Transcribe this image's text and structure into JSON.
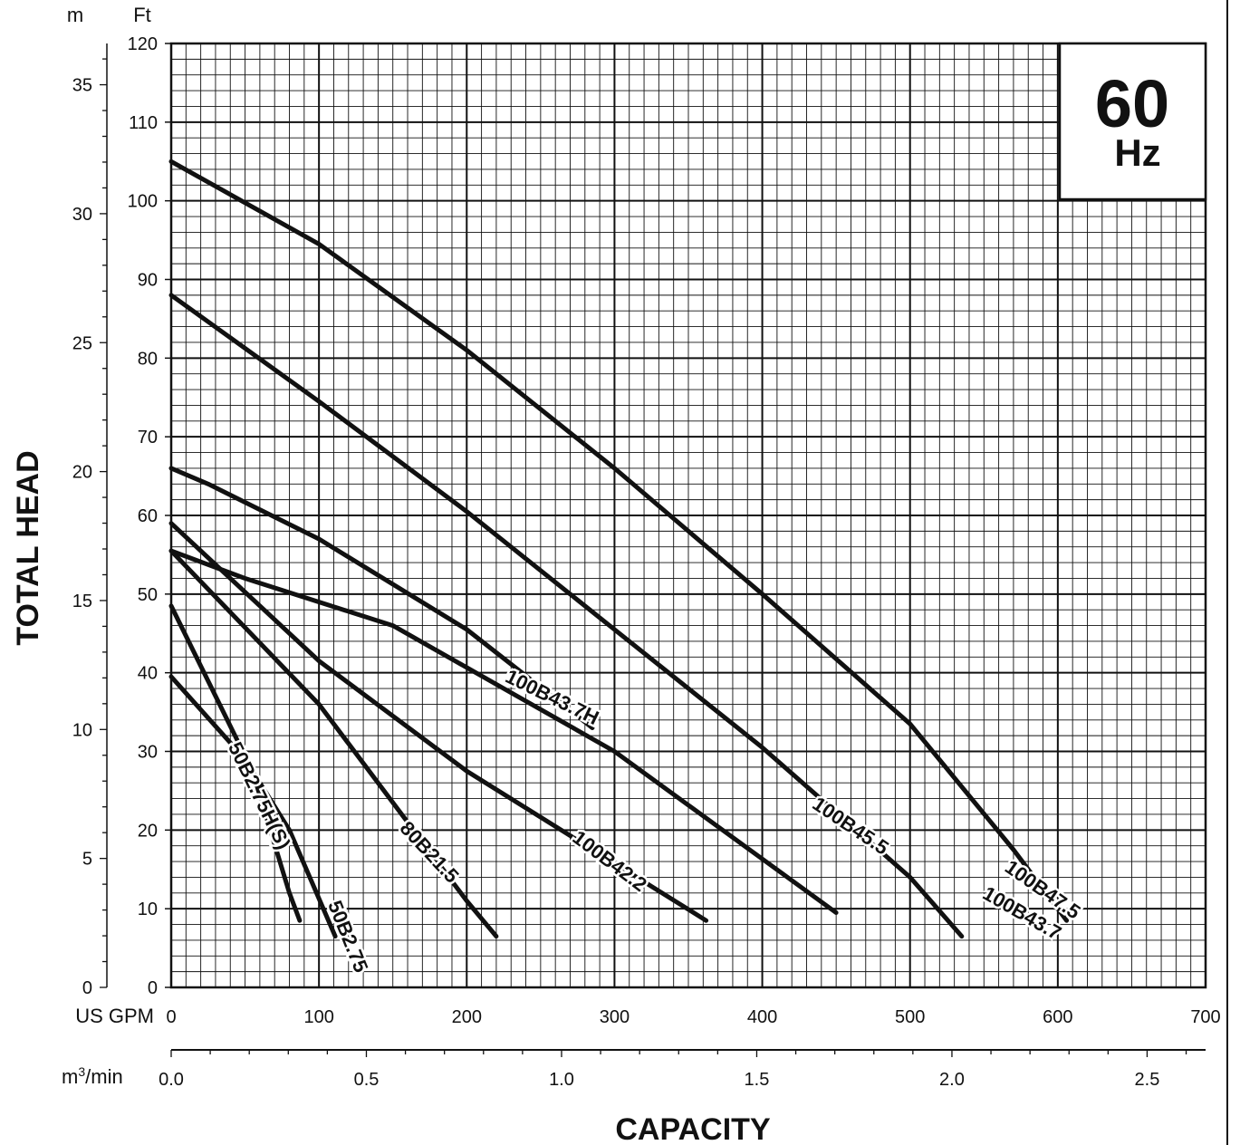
{
  "chart_data": {
    "type": "line",
    "title": "",
    "xlabel": "CAPACITY",
    "ylabel": "TOTAL HEAD",
    "x_unit_primary": "US GPM",
    "x_unit_secondary_base": "m",
    "x_unit_secondary_sup": "3",
    "x_unit_secondary_tail": "/min",
    "y_unit_left": "m",
    "y_unit_right": "Ft",
    "badge": {
      "value": "60",
      "unit": "Hz"
    },
    "xlim": [
      0,
      700
    ],
    "ylim": [
      0,
      120
    ],
    "ylim_m": [
      0,
      36.6
    ],
    "grid": true,
    "x_ticks": [
      "0",
      "100",
      "200",
      "300",
      "400",
      "500",
      "600",
      "700"
    ],
    "x_secondary_ticks": [
      "0.0",
      "0.5",
      "1.0",
      "1.5",
      "2.0",
      "2.5"
    ],
    "y_ticks_ft": [
      "0",
      "10",
      "20",
      "30",
      "40",
      "50",
      "60",
      "70",
      "80",
      "90",
      "100",
      "110",
      "120"
    ],
    "y_ticks_m": [
      "0",
      "5",
      "10",
      "15",
      "20",
      "25",
      "30",
      "35"
    ],
    "series": [
      {
        "name": "100B47.5",
        "label_at": 590,
        "label_angle": 35,
        "x": [
          0,
          100,
          200,
          300,
          400,
          500,
          570,
          606
        ],
        "y": [
          105,
          94.5,
          81,
          66,
          50,
          33.5,
          17.5,
          8.5
        ]
      },
      {
        "name": "100B45.5",
        "label_at": 460,
        "label_angle": 34,
        "x": [
          0,
          100,
          200,
          300,
          400,
          500,
          535
        ],
        "y": [
          88,
          74.5,
          60.5,
          45.5,
          30.5,
          14,
          6.5
        ]
      },
      {
        "name": "100B43.7H",
        "label_at": 258,
        "label_angle": 26,
        "x": [
          0,
          25,
          100,
          200,
          285
        ],
        "y": [
          66,
          64,
          57,
          45.5,
          33
        ]
      },
      {
        "name": "100B43.7",
        "label_at": 576,
        "label_angle": 30,
        "x": [
          0,
          50,
          150,
          300,
          450
        ],
        "y": [
          55.5,
          52,
          46,
          30,
          9.5
        ]
      },
      {
        "name": "100B42.2",
        "label_at": 297,
        "label_angle": 37,
        "x": [
          0,
          100,
          200,
          362
        ],
        "y": [
          59,
          41.5,
          27.5,
          8.5
        ]
      },
      {
        "name": "80B21.5",
        "label_at": 175,
        "label_angle": 47,
        "x": [
          0,
          100,
          200,
          220
        ],
        "y": [
          55.5,
          36,
          11,
          6.5
        ]
      },
      {
        "name": "50B2.75H(S)",
        "label_at": 60,
        "label_angle": 64,
        "x": [
          0,
          55,
          80,
          87
        ],
        "y": [
          48.5,
          27.5,
          12,
          8.5
        ]
      },
      {
        "name": "50B2.75",
        "label_at": 120,
        "label_angle": 68,
        "x": [
          0,
          50,
          80,
          111
        ],
        "y": [
          39.5,
          29,
          20,
          6.5
        ]
      }
    ]
  }
}
